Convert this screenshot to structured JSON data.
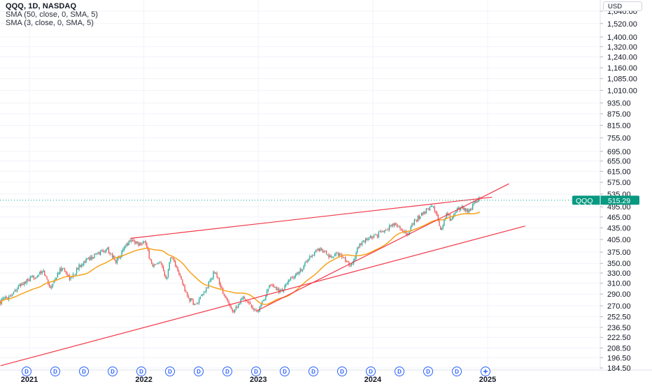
{
  "chart_data": {
    "type": "candlestick",
    "symbol_title": "QQQ, 1D, NASDAQ",
    "indicators": [
      {
        "label": "SMA (50, close, 0, SMA, 5)",
        "color": "#f7a21b"
      },
      {
        "label": "SMA (3, close, 0, SMA, 5)",
        "color": "#2962ff"
      }
    ],
    "currency": "USD",
    "scale": "log",
    "y_ticks": [
      "1,640.00",
      "1,520.00",
      "1,400.00",
      "1,320.00",
      "1,240.00",
      "1,160.00",
      "1,085.00",
      "1,010.00",
      "935.00",
      "875.00",
      "815.00",
      "755.00",
      "695.00",
      "655.00",
      "615.00",
      "575.00",
      "535.00",
      "495.00",
      "465.00",
      "435.00",
      "405.00",
      "375.00",
      "350.00",
      "330.00",
      "310.00",
      "290.00",
      "270.00",
      "252.50",
      "236.50",
      "222.50",
      "208.50",
      "196.50",
      "184.50"
    ],
    "x_labels": [
      "2021",
      "2022",
      "2023",
      "2024",
      "2025"
    ],
    "last_price": {
      "symbol": "QQQ",
      "value": "515.29"
    },
    "dividend_marker": "D",
    "dividend_count": 16,
    "colors": {
      "up": "#26a69a",
      "down": "#ef5350",
      "sma50": "#f7a21b",
      "trendline": "#f23645",
      "price_tag": "#089981"
    },
    "price_path": [
      {
        "date": "2020-10-01",
        "close": 277
      },
      {
        "date": "2020-11-01",
        "close": 288
      },
      {
        "date": "2020-12-01",
        "close": 305
      },
      {
        "date": "2021-01-15",
        "close": 322
      },
      {
        "date": "2021-02-15",
        "close": 333
      },
      {
        "date": "2021-03-08",
        "close": 302
      },
      {
        "date": "2021-04-15",
        "close": 342
      },
      {
        "date": "2021-05-12",
        "close": 318
      },
      {
        "date": "2021-06-15",
        "close": 350
      },
      {
        "date": "2021-07-15",
        "close": 362
      },
      {
        "date": "2021-08-15",
        "close": 375
      },
      {
        "date": "2021-09-07",
        "close": 382
      },
      {
        "date": "2021-10-04",
        "close": 355
      },
      {
        "date": "2021-11-19",
        "close": 405
      },
      {
        "date": "2021-12-15",
        "close": 395
      },
      {
        "date": "2022-01-03",
        "close": 401
      },
      {
        "date": "2022-01-27",
        "close": 345
      },
      {
        "date": "2022-02-25",
        "close": 348
      },
      {
        "date": "2022-03-14",
        "close": 320
      },
      {
        "date": "2022-03-29",
        "close": 370
      },
      {
        "date": "2022-05-01",
        "close": 315
      },
      {
        "date": "2022-05-20",
        "close": 285
      },
      {
        "date": "2022-06-16",
        "close": 270
      },
      {
        "date": "2022-07-15",
        "close": 295
      },
      {
        "date": "2022-08-16",
        "close": 335
      },
      {
        "date": "2022-09-15",
        "close": 285
      },
      {
        "date": "2022-10-13",
        "close": 262
      },
      {
        "date": "2022-11-15",
        "close": 285
      },
      {
        "date": "2022-12-28",
        "close": 260
      },
      {
        "date": "2023-01-15",
        "close": 275
      },
      {
        "date": "2023-02-02",
        "close": 305
      },
      {
        "date": "2023-03-15",
        "close": 295
      },
      {
        "date": "2023-04-15",
        "close": 318
      },
      {
        "date": "2023-05-15",
        "close": 335
      },
      {
        "date": "2023-06-15",
        "close": 365
      },
      {
        "date": "2023-07-19",
        "close": 385
      },
      {
        "date": "2023-08-15",
        "close": 362
      },
      {
        "date": "2023-09-15",
        "close": 372
      },
      {
        "date": "2023-10-26",
        "close": 345
      },
      {
        "date": "2023-11-15",
        "close": 388
      },
      {
        "date": "2023-12-15",
        "close": 408
      },
      {
        "date": "2024-01-15",
        "close": 415
      },
      {
        "date": "2024-02-15",
        "close": 435
      },
      {
        "date": "2024-03-15",
        "close": 445
      },
      {
        "date": "2024-04-19",
        "close": 417
      },
      {
        "date": "2024-05-15",
        "close": 455
      },
      {
        "date": "2024-06-15",
        "close": 480
      },
      {
        "date": "2024-07-10",
        "close": 502
      },
      {
        "date": "2024-07-25",
        "close": 460
      },
      {
        "date": "2024-08-05",
        "close": 430
      },
      {
        "date": "2024-08-25",
        "close": 478
      },
      {
        "date": "2024-09-06",
        "close": 455
      },
      {
        "date": "2024-09-25",
        "close": 488
      },
      {
        "date": "2024-10-15",
        "close": 493
      },
      {
        "date": "2024-11-01",
        "close": 480
      },
      {
        "date": "2024-11-20",
        "close": 505
      },
      {
        "date": "2024-12-05",
        "close": 520
      },
      {
        "date": "2024-12-10",
        "close": 515
      }
    ],
    "trendlines": [
      {
        "from": {
          "date": "2020-10-01",
          "price": 187
        },
        "to": {
          "date": "2025-05-01",
          "price": 440
        }
      },
      {
        "from": {
          "date": "2021-11-19",
          "price": 408
        },
        "to": {
          "date": "2025-01-15",
          "price": 525
        }
      },
      {
        "from": {
          "date": "2022-12-28",
          "price": 262
        },
        "to": {
          "date": "2025-03-10",
          "price": 570
        }
      }
    ]
  }
}
